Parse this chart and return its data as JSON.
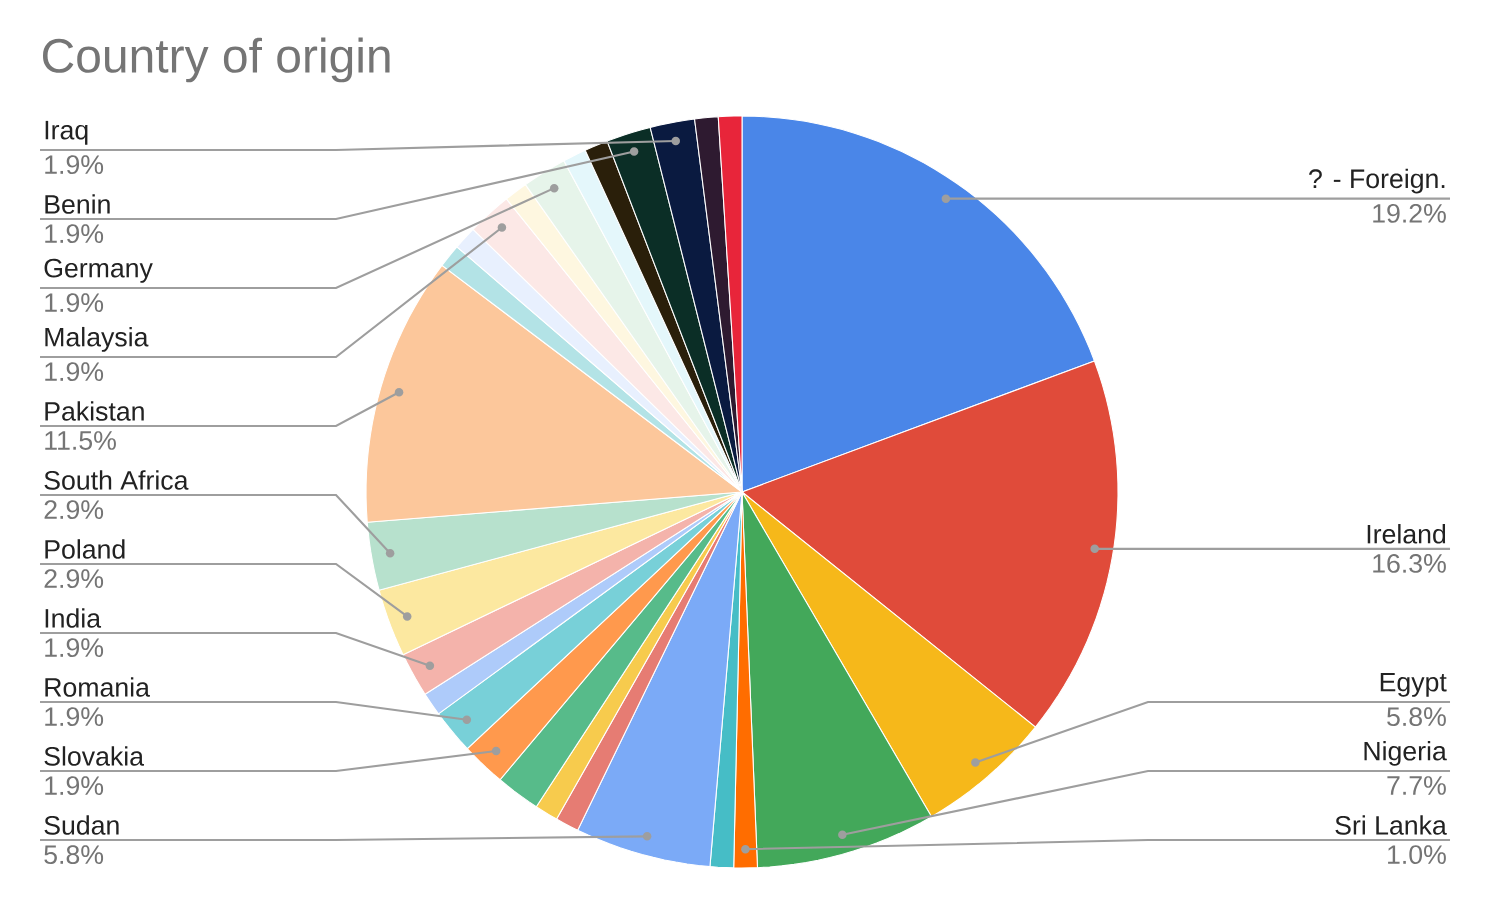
{
  "chart_data": {
    "type": "pie",
    "title": "Country of origin",
    "categories": [
      "? - Foreign.",
      "Ireland",
      "Egypt",
      "Nigeria",
      "Sri Lanka",
      null,
      "Sudan",
      null,
      null,
      null,
      "Slovakia",
      "Romania",
      null,
      "India",
      "Poland",
      "South Africa",
      "Pakistan",
      null,
      null,
      "Malaysia",
      null,
      "Germany",
      null,
      null,
      "Benin",
      "Iraq",
      null,
      null
    ],
    "values": [
      19.2,
      16.3,
      5.8,
      7.7,
      1.0,
      1.0,
      5.8,
      1.0,
      1.0,
      1.9,
      1.9,
      1.9,
      1.0,
      1.9,
      2.9,
      2.9,
      11.5,
      1.0,
      1.0,
      1.9,
      1.0,
      1.9,
      1.0,
      1.0,
      1.9,
      1.9,
      1.0,
      1.0
    ],
    "value_labels": [
      "19.2%",
      "16.3%",
      "5.8%",
      "7.7%",
      "1.0%",
      null,
      "5.8%",
      null,
      null,
      null,
      "1.9%",
      "1.9%",
      null,
      "1.9%",
      "2.9%",
      "2.9%",
      "11.5%",
      null,
      null,
      "1.9%",
      null,
      "1.9%",
      null,
      null,
      "1.9%",
      "1.9%",
      null,
      null
    ],
    "colors": [
      "#4a86e8",
      "#e04b3a",
      "#f6b81a",
      "#43a85a",
      "#ff6d00",
      "#46bdc6",
      "#7baaf7",
      "#e67c73",
      "#f7cb4d",
      "#57bb8a",
      "#ff994d",
      "#78d0d8",
      "#aecbfa",
      "#f4b3ab",
      "#fce8a0",
      "#b7e1cd",
      "#fcc79b",
      "#b3e3e6",
      "#e8f0fe",
      "#fce8e6",
      "#fef7e0",
      "#e6f4ea",
      "#e4f7fb",
      "#2a1f0a",
      "#0b2e26",
      "#0a1a40",
      "#2e1a30",
      "#e8253a"
    ]
  }
}
